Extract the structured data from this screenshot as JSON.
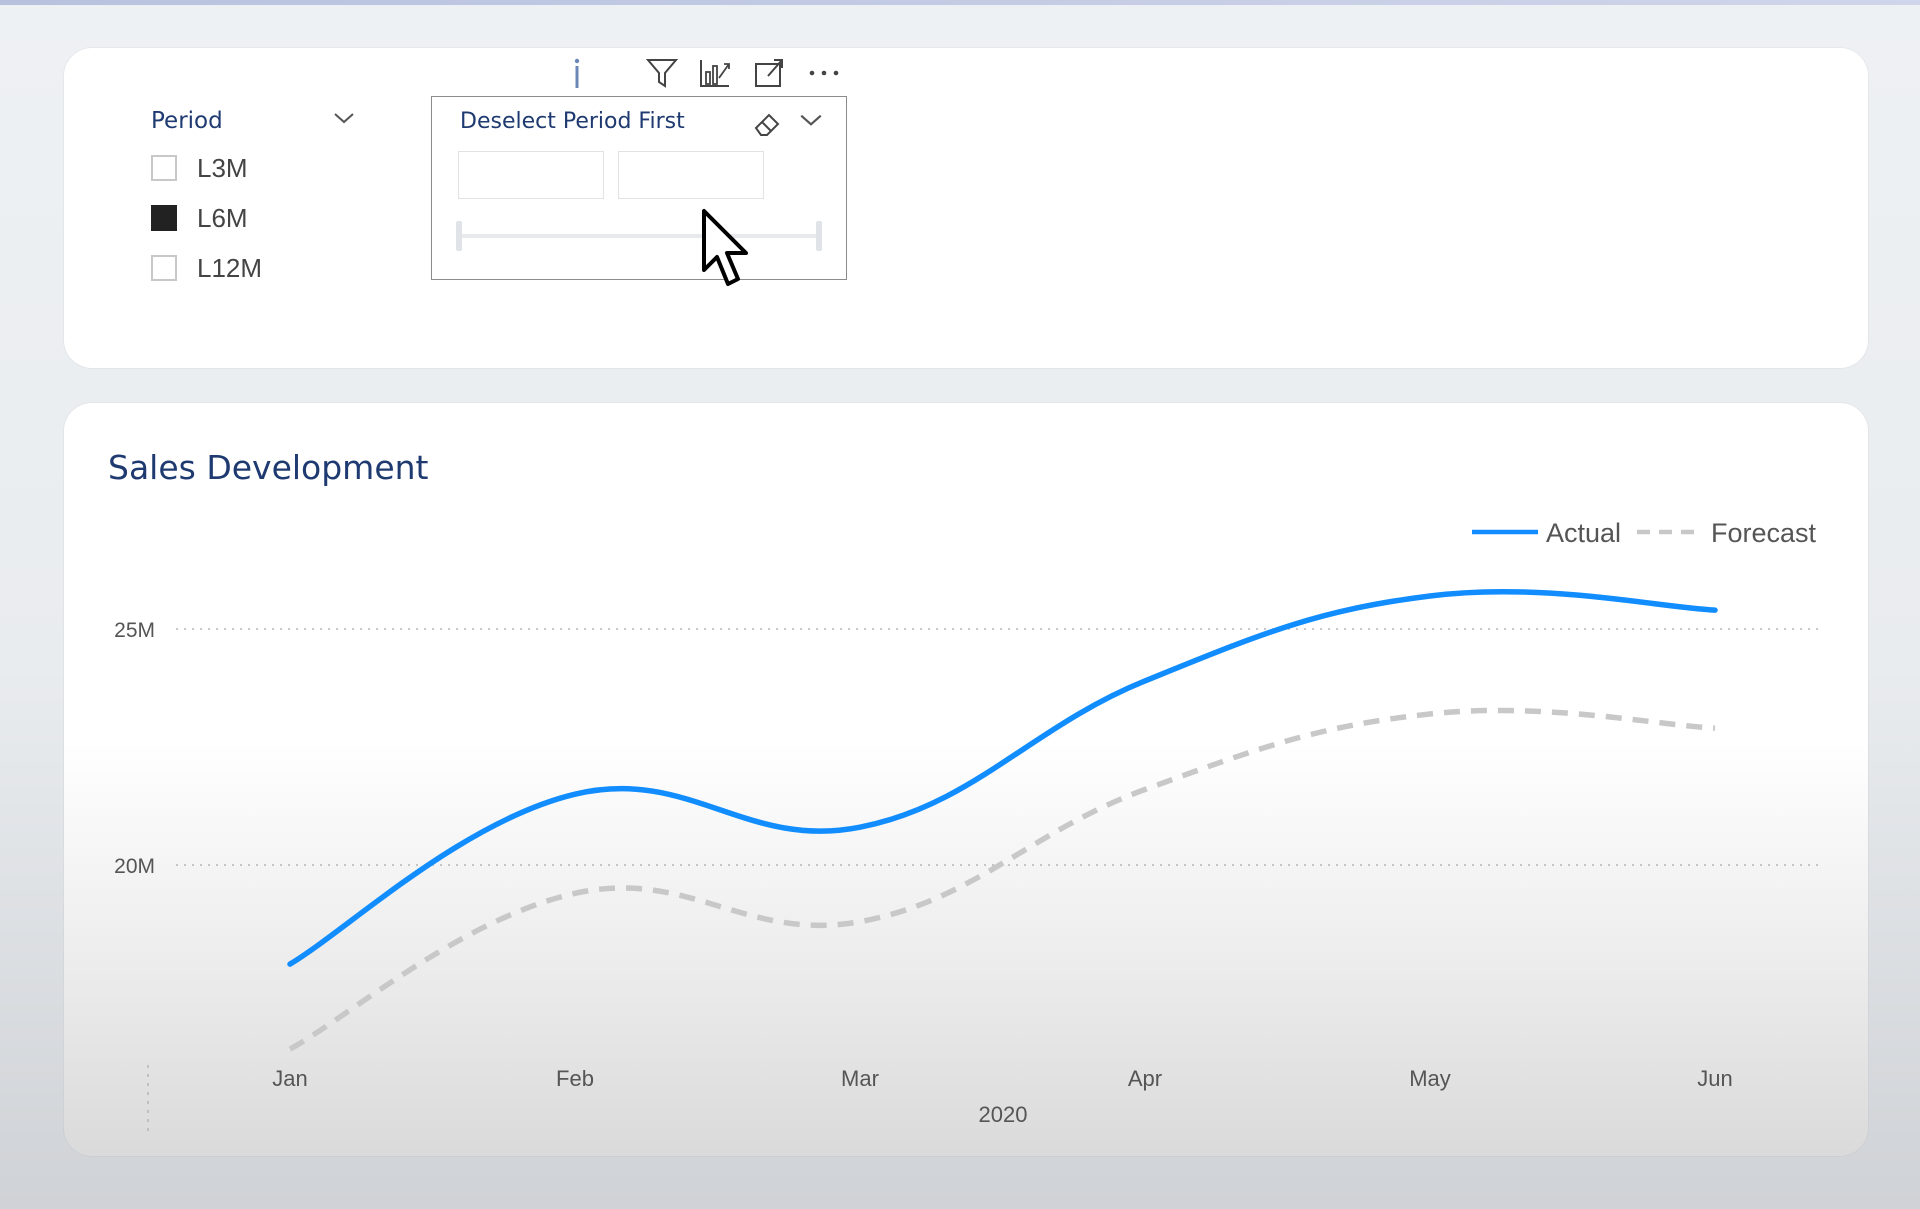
{
  "slicer": {
    "title": "Period",
    "options": [
      {
        "label": "L3M",
        "checked": false
      },
      {
        "label": "L6M",
        "checked": true
      },
      {
        "label": "L12M",
        "checked": false
      }
    ]
  },
  "range_slicer": {
    "title": "Deselect Period First",
    "from_value": "",
    "to_value": ""
  },
  "toolbar": {
    "icons": [
      "info-icon",
      "filter-icon",
      "drill-icon",
      "focus-mode-icon",
      "more-options-icon"
    ]
  },
  "chart_data": {
    "type": "line",
    "title": "Sales Development",
    "categories": [
      "Jan",
      "Feb",
      "Mar",
      "Apr",
      "May",
      "Jun"
    ],
    "xlabel": "2020",
    "ylabel": "",
    "y_ticks": [
      {
        "value": 20000000,
        "label": "20M"
      },
      {
        "value": 25000000,
        "label": "25M"
      }
    ],
    "ylim": [
      15500000,
      28000000
    ],
    "grid": true,
    "legend": "top-right",
    "series": [
      {
        "name": "Actual",
        "values": [
          17900000,
          21500000,
          20800000,
          23900000,
          25700000,
          25400000
        ],
        "color": "#118dff",
        "style": "solid"
      },
      {
        "name": "Forecast",
        "values": [
          16100000,
          19400000,
          18800000,
          21600000,
          23200000,
          22900000
        ],
        "color": "#c8c8c8",
        "style": "dashed"
      }
    ]
  }
}
